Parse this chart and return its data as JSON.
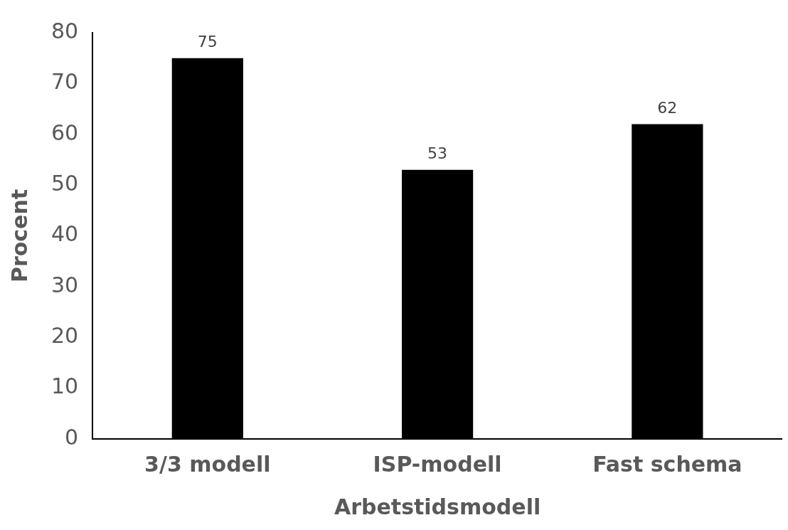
{
  "chart_data": {
    "type": "bar",
    "xlabel": "Arbetstidsmodell",
    "ylabel": "Procent",
    "categories": [
      "3/3 modell",
      "ISP-modell",
      "Fast schema"
    ],
    "values": [
      75,
      53,
      62
    ],
    "color": "#000000",
    "ylim": [
      0,
      80
    ],
    "yticks": [
      0,
      10,
      20,
      30,
      40,
      50,
      60,
      70,
      80
    ],
    "data_labels": true,
    "grid": false,
    "legend": false
  }
}
